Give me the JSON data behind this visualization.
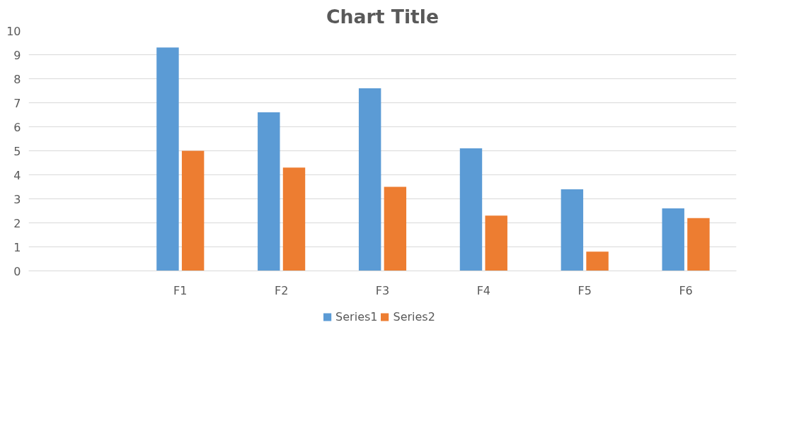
{
  "chart_data": {
    "type": "bar",
    "title": "Chart Title",
    "categories": [
      null,
      "F1",
      "F2",
      "F3",
      "F4",
      "F5",
      "F6"
    ],
    "series": [
      {
        "name": "Series1",
        "color": "#5b9bd5",
        "values": [
          null,
          9.3,
          6.6,
          7.6,
          5.1,
          3.4,
          2.6
        ]
      },
      {
        "name": "Series2",
        "color": "#ed7d31",
        "values": [
          null,
          5.0,
          4.3,
          3.5,
          2.3,
          0.8,
          2.2
        ]
      }
    ],
    "ylim": [
      0,
      10
    ],
    "yticks": [
      0,
      1,
      2,
      3,
      4,
      5,
      6,
      7,
      8,
      9,
      10
    ],
    "grid": "y",
    "legend": "bottom"
  }
}
